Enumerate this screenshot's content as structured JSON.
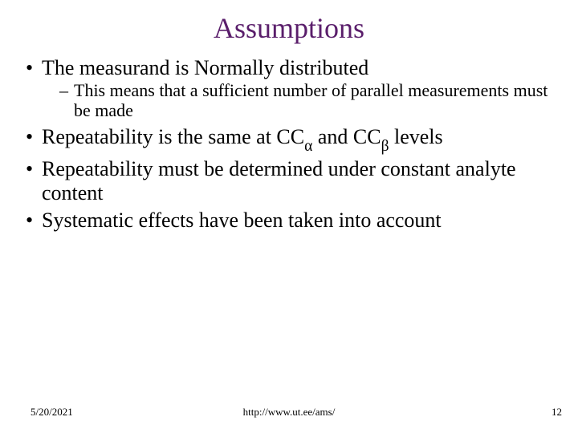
{
  "title": {
    "text": "Assumptions",
    "color": "#5a1e6b",
    "fontsize": 36
  },
  "body": {
    "fontsize_l1": 26,
    "fontsize_l2": 22,
    "bullets": [
      {
        "text": "The measurand is Normally distributed",
        "sub": [
          {
            "text": "This means that a sufficient number of parallel measurements must be made"
          }
        ]
      },
      {
        "text_pre": "Repeatability is the same at CC",
        "sub1": "α",
        "text_mid": " and CC",
        "sub2": "β",
        "text_post": " levels"
      },
      {
        "text": "Repeatability must be determined under constant analyte content"
      },
      {
        "text": "Systematic effects have been taken into account"
      }
    ]
  },
  "footer": {
    "date": "5/20/2021",
    "url": "http://www.ut.ee/ams/",
    "page": "12",
    "fontsize": 13
  },
  "colors": {
    "background": "#ffffff",
    "text": "#000000"
  }
}
